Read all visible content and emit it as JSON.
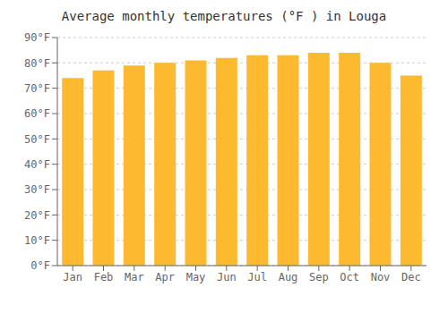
{
  "chart_data": {
    "type": "bar",
    "title": "Average monthly temperatures (°F ) in Louga",
    "categories": [
      "Jan",
      "Feb",
      "Mar",
      "Apr",
      "May",
      "Jun",
      "Jul",
      "Aug",
      "Sep",
      "Oct",
      "Nov",
      "Dec"
    ],
    "values": [
      74,
      77,
      79,
      80,
      81,
      82,
      83,
      83,
      84,
      84,
      80,
      75
    ],
    "color": "#FDBA30",
    "ylim": [
      0,
      90
    ],
    "yticks": [
      {
        "value": 0,
        "label": "0°F"
      },
      {
        "value": 10,
        "label": "10°F"
      },
      {
        "value": 20,
        "label": "20°F"
      },
      {
        "value": 30,
        "label": "30°F"
      },
      {
        "value": 40,
        "label": "40°F"
      },
      {
        "value": 50,
        "label": "50°F"
      },
      {
        "value": 60,
        "label": "60°F"
      },
      {
        "value": 70,
        "label": "70°F"
      },
      {
        "value": 80,
        "label": "80°F"
      },
      {
        "value": 90,
        "label": "90°F"
      }
    ],
    "grid": true
  }
}
